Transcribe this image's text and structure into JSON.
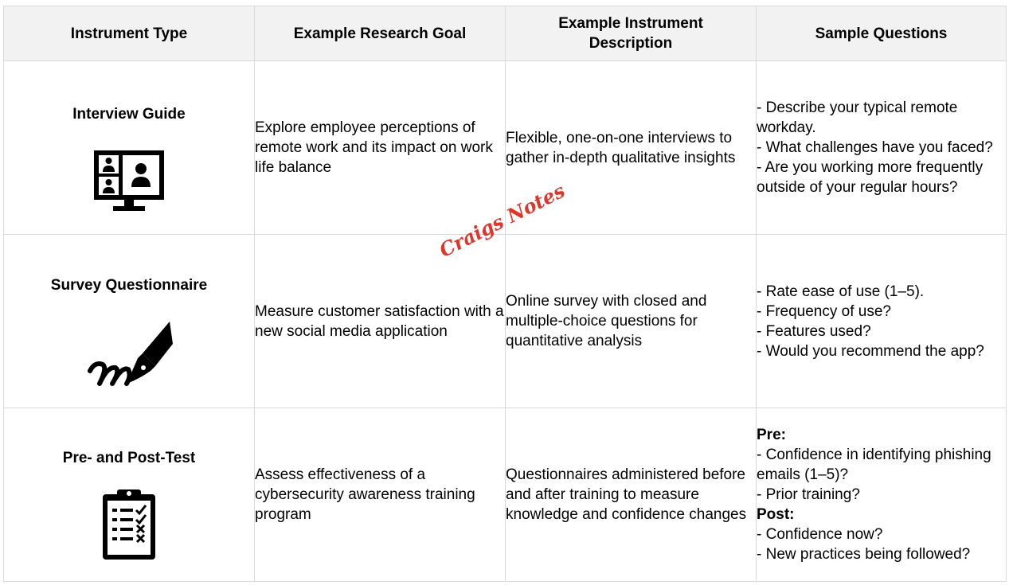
{
  "headers": [
    "Instrument Type",
    "Example Research Goal",
    "Example Instrument Description",
    "Sample Questions"
  ],
  "rows": [
    {
      "type": "Interview Guide",
      "icon": "video-conference-icon",
      "goal": "Explore employee perceptions of remote work and its impact on work life balance",
      "description": "Flexible, one-on-one interviews to gather in-depth qualitative insights",
      "questions": [
        "- Describe your typical remote workday.",
        "- What challenges have you faced?",
        "- Are you working more frequently outside of your regular hours?"
      ]
    },
    {
      "type": "Survey Questionnaire",
      "icon": "fountain-pen-signature-icon",
      "goal": "Measure customer satisfaction with a new social media application",
      "description": "Online survey with closed and multiple-choice questions for quantitative analysis",
      "questions": [
        "- Rate ease of use (1–5).",
        "- Frequency of use?",
        "- Features used?",
        "- Would you recommend the app?"
      ]
    },
    {
      "type": "Pre- and Post-Test",
      "icon": "clipboard-checklist-icon",
      "goal": "Assess effectiveness of a cybersecurity awareness training program",
      "description": "Questionnaires administered before and after training to measure knowledge and confidence changes",
      "pre_label": "Pre:",
      "pre_questions": [
        "- Confidence in identifying phishing emails (1–5)?",
        "- Prior training?"
      ],
      "post_label": "Post:",
      "post_questions": [
        "- Confidence now?",
        "- New practices being followed?"
      ]
    }
  ],
  "watermark": "Craigs Notes"
}
